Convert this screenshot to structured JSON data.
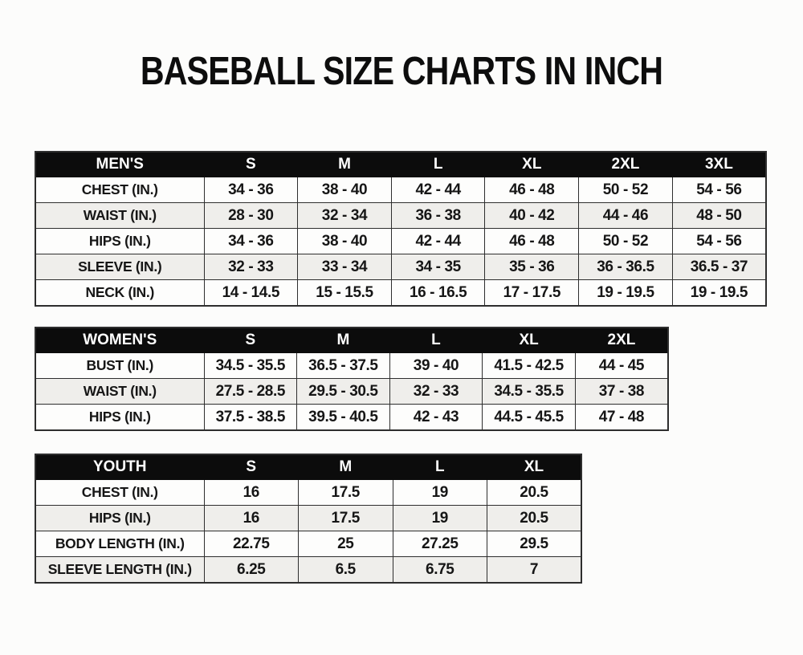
{
  "page": {
    "title": "BASEBALL SIZE CHARTS IN INCH"
  },
  "colors": {
    "header_bg": "#0c0c0c",
    "header_text": "#ffffff",
    "row_bg": "#fdfdfc",
    "row_alt": "#efeeeb",
    "border": "#2e2e2e",
    "title_color": "#0d0d0d"
  },
  "chart_data": [
    {
      "type": "table",
      "title": "MEN'S",
      "columns": [
        "MEN'S",
        "S",
        "M",
        "L",
        "XL",
        "2XL",
        "3XL"
      ],
      "rows": [
        [
          "CHEST (IN.)",
          "34 - 36",
          "38 - 40",
          "42 - 44",
          "46 - 48",
          "50 - 52",
          "54 - 56"
        ],
        [
          "WAIST (IN.)",
          "28 - 30",
          "32 - 34",
          "36 - 38",
          "40 - 42",
          "44 - 46",
          "48 - 50"
        ],
        [
          "HIPS (IN.)",
          "34 - 36",
          "38 - 40",
          "42 - 44",
          "46 - 48",
          "50 - 52",
          "54 - 56"
        ],
        [
          "SLEEVE (IN.)",
          "32 - 33",
          "33 - 34",
          "34 - 35",
          "35 - 36",
          "36 - 36.5",
          "36.5 - 37"
        ],
        [
          "NECK (IN.)",
          "14 - 14.5",
          "15 - 15.5",
          "16 - 16.5",
          "17 - 17.5",
          "19 - 19.5",
          "19 - 19.5"
        ]
      ]
    },
    {
      "type": "table",
      "title": "WOMEN'S",
      "columns": [
        "WOMEN'S",
        "S",
        "M",
        "L",
        "XL",
        "2XL"
      ],
      "rows": [
        [
          "BUST (IN.)",
          "34.5 - 35.5",
          "36.5 - 37.5",
          "39 - 40",
          "41.5 - 42.5",
          "44 - 45"
        ],
        [
          "WAIST (IN.)",
          "27.5 - 28.5",
          "29.5 - 30.5",
          "32 - 33",
          "34.5 - 35.5",
          "37 - 38"
        ],
        [
          "HIPS (IN.)",
          "37.5 - 38.5",
          "39.5 - 40.5",
          "42 - 43",
          "44.5 - 45.5",
          "47 - 48"
        ]
      ]
    },
    {
      "type": "table",
      "title": "YOUTH",
      "columns": [
        "YOUTH",
        "S",
        "M",
        "L",
        "XL"
      ],
      "rows": [
        [
          "CHEST (IN.)",
          "16",
          "17.5",
          "19",
          "20.5"
        ],
        [
          "HIPS (IN.)",
          "16",
          "17.5",
          "19",
          "20.5"
        ],
        [
          "BODY LENGTH (IN.)",
          "22.75",
          "25",
          "27.25",
          "29.5"
        ],
        [
          "SLEEVE LENGTH (IN.)",
          "6.25",
          "6.5",
          "6.75",
          "7"
        ]
      ]
    }
  ]
}
